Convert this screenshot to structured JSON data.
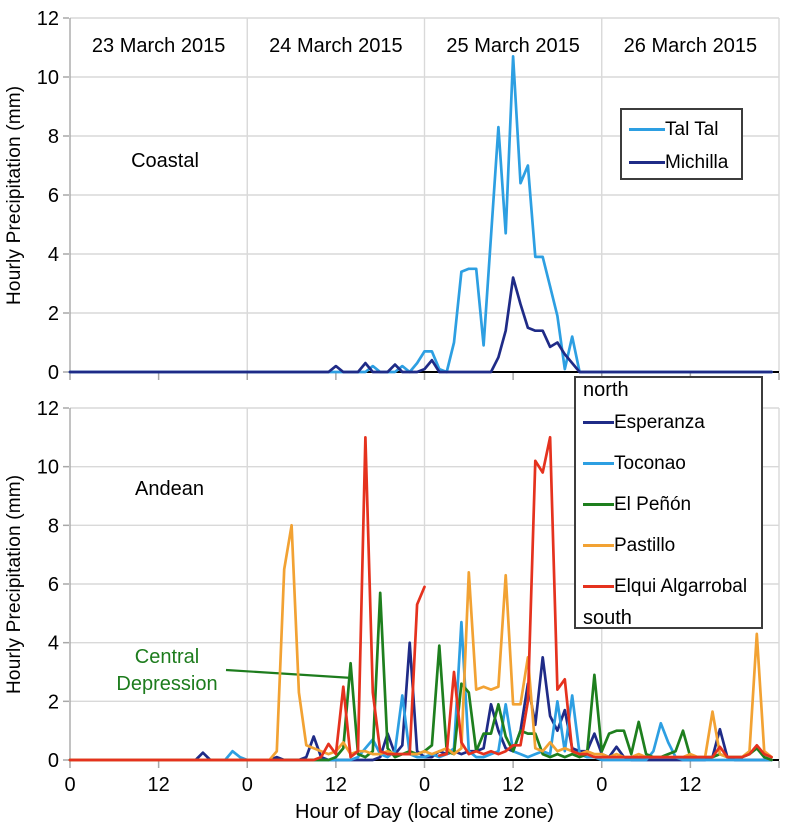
{
  "chart_data": {
    "type": "line",
    "x": {
      "unit": "hour",
      "hours_total": 96,
      "tick_interval_hours": 12,
      "tick_labels": [
        "0",
        "12",
        "0",
        "12",
        "0",
        "12",
        "0",
        "12"
      ],
      "xlabel": "Hour of Day (local time zone)",
      "date_headers": [
        "23 March 2015",
        "24 March 2015",
        "25 March 2015",
        "26 March 2015"
      ]
    },
    "y": {
      "label": "Hourly Precipitation (mm)",
      "min": 0,
      "max": 12,
      "tick_step": 2
    },
    "colors": {
      "gridline": "#D9D9D9",
      "axis_tick": "#A8A8A8",
      "axis_line": "#000000",
      "legend_border": "#3c3c3c"
    },
    "panels": [
      {
        "id": "coastal",
        "region_label": "Coastal",
        "series": [
          {
            "name": "Tal Tal",
            "color": "#2D9FE2",
            "values": [
              0,
              0,
              0,
              0,
              0,
              0,
              0,
              0,
              0,
              0,
              0,
              0,
              0,
              0,
              0,
              0,
              0,
              0,
              0,
              0,
              0,
              0,
              0,
              0,
              0,
              0,
              0,
              0,
              0,
              0,
              0,
              0,
              0,
              0,
              0,
              0,
              0,
              0,
              0,
              0,
              0,
              0.2,
              0,
              0,
              0,
              0.2,
              0,
              0.3,
              0.7,
              0.7,
              0.1,
              0,
              1.0,
              3.4,
              3.5,
              3.5,
              0.9,
              4.6,
              8.3,
              4.7,
              10.7,
              6.4,
              7.0,
              3.9,
              3.9,
              2.9,
              1.9,
              0.1,
              1.2,
              0,
              0,
              0,
              0,
              0,
              0,
              0,
              0,
              0,
              0,
              0,
              0,
              0,
              0,
              0,
              0,
              0,
              0,
              0,
              0,
              0,
              0,
              0,
              0,
              0,
              0,
              0
            ]
          },
          {
            "name": "Michilla",
            "color": "#1F2B87",
            "values": [
              0,
              0,
              0,
              0,
              0,
              0,
              0,
              0,
              0,
              0,
              0,
              0,
              0,
              0,
              0,
              0,
              0,
              0,
              0,
              0,
              0,
              0,
              0,
              0,
              0,
              0,
              0,
              0,
              0,
              0,
              0,
              0,
              0,
              0,
              0,
              0,
              0.2,
              0,
              0,
              0,
              0.3,
              0,
              0,
              0,
              0.25,
              0,
              0,
              0,
              0.1,
              0.4,
              0,
              0,
              0,
              0,
              0,
              0,
              0,
              0,
              0.5,
              1.4,
              3.2,
              2.3,
              1.5,
              1.4,
              1.4,
              0.85,
              1.0,
              0.6,
              0.3,
              0,
              0,
              0,
              0,
              0,
              0,
              0,
              0,
              0,
              0,
              0,
              0,
              0,
              0,
              0,
              0,
              0,
              0,
              0,
              0,
              0,
              0,
              0,
              0,
              0,
              0,
              0
            ]
          }
        ]
      },
      {
        "id": "andean",
        "region_label": "Andean",
        "legend": {
          "top_label": "north",
          "bottom_label": "south"
        },
        "annotation": {
          "text": "Central Depression",
          "color": "#1D7C1D",
          "points_to": {
            "hour": 38,
            "value": 2.8
          }
        },
        "series": [
          {
            "name": "Esperanza",
            "color": "#1F2B87",
            "values": [
              0,
              0,
              0,
              0,
              0,
              0,
              0,
              0,
              0,
              0,
              0,
              0,
              0,
              0,
              0,
              0,
              0,
              0,
              0.25,
              0,
              0,
              0,
              0,
              0,
              0,
              0,
              0,
              0,
              0.1,
              0,
              0,
              0,
              0.1,
              0.8,
              0.1,
              0,
              0,
              0,
              0,
              0,
              0,
              0,
              0.1,
              0.9,
              0.2,
              0.5,
              4.0,
              0.3,
              0.1,
              0.1,
              0.3,
              0.2,
              0.3,
              0.2,
              0.3,
              0.3,
              0.4,
              1.9,
              1.0,
              0.4,
              0.3,
              1.0,
              2.6,
              1.2,
              3.5,
              1.5,
              1.0,
              1.7,
              0.4,
              0.3,
              0.3,
              0.9,
              0.2,
              0.1,
              0.45,
              0.1,
              0,
              0,
              0,
              0,
              0,
              0,
              0,
              0,
              0,
              0,
              0,
              0.1,
              1.05,
              0.1,
              0,
              0,
              0,
              0,
              0,
              0
            ]
          },
          {
            "name": "Toconao",
            "color": "#2D9FE2",
            "values": [
              0,
              0,
              0,
              0,
              0,
              0,
              0,
              0,
              0,
              0,
              0,
              0,
              0,
              0,
              0,
              0,
              0,
              0,
              0,
              0,
              0,
              0,
              0.3,
              0.1,
              0,
              0,
              0,
              0,
              0,
              0,
              0,
              0,
              0,
              0,
              0,
              0,
              0,
              0,
              0,
              0.1,
              0.4,
              0.7,
              0.2,
              0.1,
              0.3,
              2.2,
              0.2,
              0.1,
              0.1,
              0.2,
              0.1,
              0.2,
              0.4,
              4.7,
              0.3,
              0.1,
              0.1,
              0.2,
              0.3,
              1.9,
              0.3,
              0.2,
              0.1,
              0.2,
              0.3,
              0.2,
              2.0,
              0.3,
              2.2,
              0.2,
              0.1,
              0.1,
              0,
              0,
              0,
              0,
              0,
              0,
              0,
              0.3,
              1.25,
              0.6,
              0.1,
              0,
              0,
              0,
              0,
              0,
              0,
              0,
              0,
              0,
              0,
              0,
              0,
              0
            ]
          },
          {
            "name": "El Peñón",
            "color": "#1E7F1E",
            "values": [
              0,
              0,
              0,
              0,
              0,
              0,
              0,
              0,
              0,
              0,
              0,
              0,
              0,
              0,
              0,
              0,
              0,
              0,
              0,
              0,
              0,
              0,
              0,
              0,
              0,
              0,
              0,
              0,
              0,
              0,
              0,
              0,
              0,
              0,
              0,
              0,
              0.1,
              0.4,
              3.3,
              0.2,
              0.1,
              0.3,
              5.7,
              0.4,
              0.1,
              0.2,
              0.3,
              0.2,
              0.3,
              0.5,
              3.9,
              0.3,
              0.2,
              2.6,
              2.3,
              0.3,
              0.9,
              0.9,
              1.9,
              0.8,
              0.3,
              1.0,
              0.9,
              0.9,
              0.2,
              0.1,
              0.2,
              0.1,
              0.2,
              0.1,
              0.2,
              2.9,
              0.3,
              0.9,
              1.0,
              1.0,
              0.2,
              1.3,
              0.2,
              0.1,
              0.1,
              0.2,
              0.3,
              1.0,
              0.1,
              0.1,
              0.1,
              0.1,
              0.2,
              0.1,
              0.1,
              0.1,
              0.2,
              0.4,
              0.1,
              0
            ]
          },
          {
            "name": "Pastillo",
            "color": "#F2A233",
            "values": [
              0,
              0,
              0,
              0,
              0,
              0,
              0,
              0,
              0,
              0,
              0,
              0,
              0,
              0,
              0,
              0,
              0,
              0,
              0,
              0,
              0,
              0,
              0,
              0,
              0,
              0,
              0,
              0,
              0.3,
              6.5,
              8.0,
              2.3,
              0.5,
              0.4,
              0.3,
              0.2,
              0.3,
              0.6,
              0.2,
              0.3,
              0.3,
              0.2,
              0.2,
              0.3,
              0.2,
              0.2,
              0.2,
              0.2,
              0.3,
              0.2,
              0.3,
              0.4,
              0.2,
              0.4,
              6.4,
              2.4,
              2.5,
              2.4,
              2.5,
              6.3,
              1.9,
              1.9,
              3.5,
              0.4,
              0.3,
              0.6,
              0.3,
              0.4,
              0.3,
              0.2,
              0.3,
              0.2,
              0.2,
              0.1,
              0.2,
              0.1,
              0.1,
              0.2,
              0.1,
              0.1,
              0.1,
              0.1,
              0.1,
              0.1,
              0.2,
              0.1,
              0.1,
              1.65,
              0.2,
              0.1,
              0.1,
              0.1,
              0.3,
              4.3,
              0.3,
              0.1
            ]
          },
          {
            "name": "Elqui Algarrobal",
            "color": "#E5321E",
            "values": [
              0,
              0,
              0,
              0,
              0,
              0,
              0,
              0,
              0,
              0,
              0,
              0,
              0,
              0,
              0,
              0,
              0,
              0,
              0,
              0,
              0,
              0,
              0,
              0,
              0,
              0,
              0,
              0,
              0,
              0,
              0,
              0,
              0,
              0,
              0.1,
              0.55,
              0.2,
              2.5,
              0.1,
              0.3,
              11.0,
              2.3,
              0.3,
              0.2,
              0.2,
              0.2,
              0.2,
              5.3,
              5.9,
              null,
              0.15,
              0.2,
              3.0,
              0.6,
              0.2,
              0.3,
              0.2,
              0.3,
              0.2,
              0.3,
              0.5,
              0.5,
              2.0,
              10.2,
              9.8,
              11.0,
              2.4,
              2.75,
              0.3,
              0.2,
              0.2,
              0.1,
              0.1,
              0.1,
              0.1,
              0.1,
              0.1,
              0.1,
              0.1,
              0.1,
              0.1,
              0.1,
              0.1,
              0.1,
              0.1,
              0.1,
              0.1,
              0.1,
              0.45,
              0.1,
              0.1,
              0.1,
              0.2,
              0.5,
              0.2,
              0.1
            ]
          }
        ]
      }
    ]
  }
}
